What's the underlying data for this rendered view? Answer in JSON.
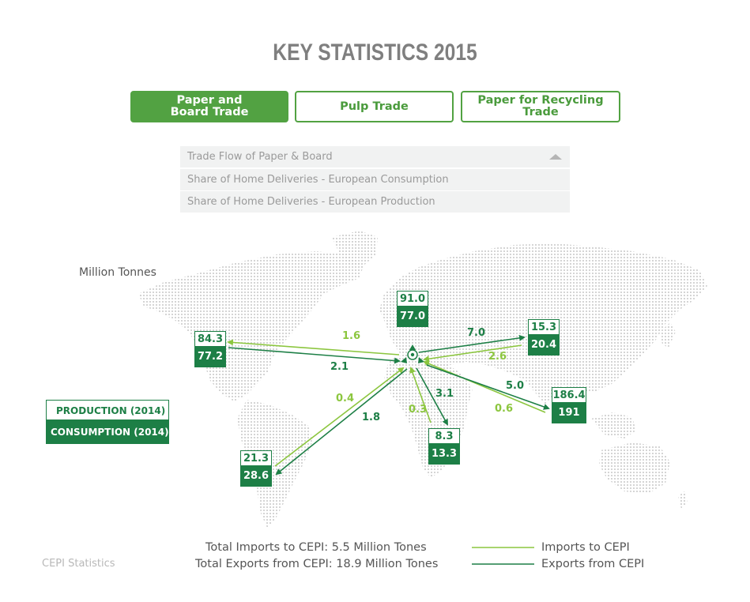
{
  "page": {
    "title": "KEY STATISTICS 2015"
  },
  "tabs": [
    {
      "label": "Paper and\nBoard Trade",
      "active": true
    },
    {
      "label": "Pulp Trade",
      "active": false
    },
    {
      "label": "Paper for Recycling\nTrade",
      "active": false
    }
  ],
  "dropdown": {
    "items": [
      "Trade Flow of Paper & Board",
      "Share of Home Deliveries - European Consumption",
      "Share of Home Deliveries - European Production"
    ]
  },
  "map": {
    "unit_label": "Million Tonnes",
    "regions": [
      {
        "id": "europe",
        "production": "91.0",
        "consumption": "77.0"
      },
      {
        "id": "north-america",
        "production": "84.3",
        "consumption": "77.2"
      },
      {
        "id": "russia",
        "production": "15.3",
        "consumption": "20.4"
      },
      {
        "id": "asia",
        "production": "186.4",
        "consumption": "191"
      },
      {
        "id": "africa",
        "production": "8.3",
        "consumption": "13.3"
      },
      {
        "id": "latin-america",
        "production": "21.3",
        "consumption": "28.6"
      }
    ],
    "flows": [
      {
        "region": "north-america",
        "imports": "1.6",
        "exports": "2.1"
      },
      {
        "region": "russia",
        "imports": "2.6",
        "exports": "7.0"
      },
      {
        "region": "asia",
        "imports": "0.6",
        "exports": "5.0"
      },
      {
        "region": "africa",
        "imports": "0.3",
        "exports": "3.1"
      },
      {
        "region": "latin-america",
        "imports": "0.4",
        "exports": "1.8"
      }
    ],
    "legend": {
      "production": "PRODUCTION (2014)",
      "consumption": "CONSUMPTION (2014)"
    }
  },
  "footer": {
    "total_imports": "Total Imports to CEPI: 5.5 Million Tones",
    "total_exports": "Total Exports from CEPI: 18.9 Million Tones",
    "legend_imports": "Imports to CEPI",
    "legend_exports": "Exports from CEPI",
    "source": "CEPI Statistics"
  },
  "colors": {
    "accent": "#52a242",
    "exports": "#1d7f46",
    "imports": "#8cc63f",
    "map_dots": "#c8c8c8"
  }
}
